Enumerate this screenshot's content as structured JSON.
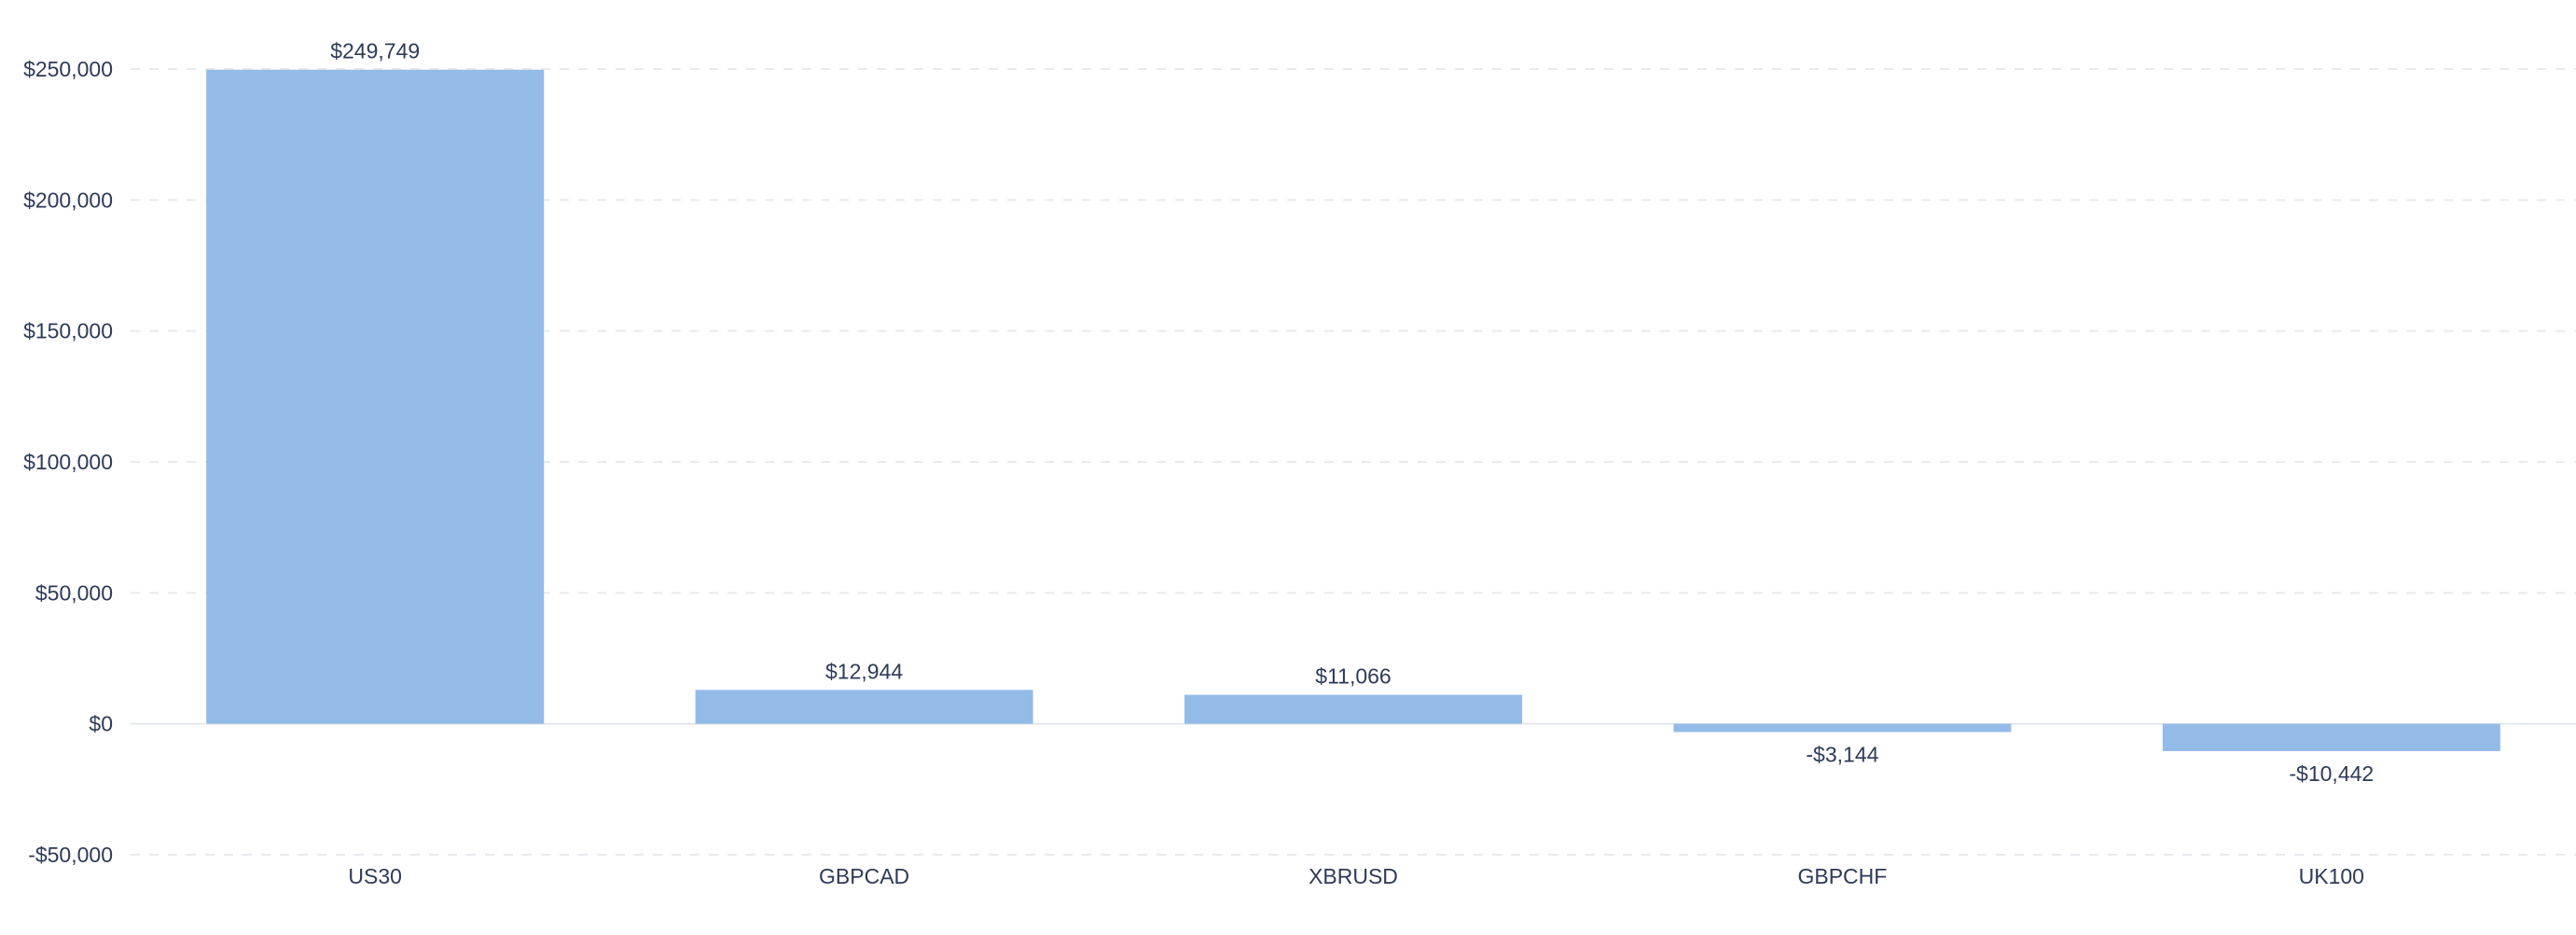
{
  "chart_data": {
    "type": "bar",
    "title": "",
    "xlabel": "",
    "ylabel": "",
    "categories": [
      "US30",
      "GBPCAD",
      "XBRUSD",
      "GBPCHF",
      "UK100"
    ],
    "values": [
      249749,
      12944,
      11066,
      -3144,
      -10442
    ],
    "value_labels": [
      "$249,749",
      "$12,944",
      "$11,066",
      "-$3,144",
      "-$10,442"
    ],
    "ylim": [
      -50000,
      250000
    ],
    "yticks": [
      -50000,
      0,
      50000,
      100000,
      150000,
      200000,
      250000
    ],
    "ytick_labels": [
      "-$50,000",
      "$0",
      "$50,000",
      "$100,000",
      "$150,000",
      "$200,000",
      "$250,000"
    ],
    "grid": true,
    "legend": "none",
    "colors": {
      "bar": "#93bbe7",
      "text": "#2e3a59",
      "grid": "#e8eaee"
    }
  }
}
